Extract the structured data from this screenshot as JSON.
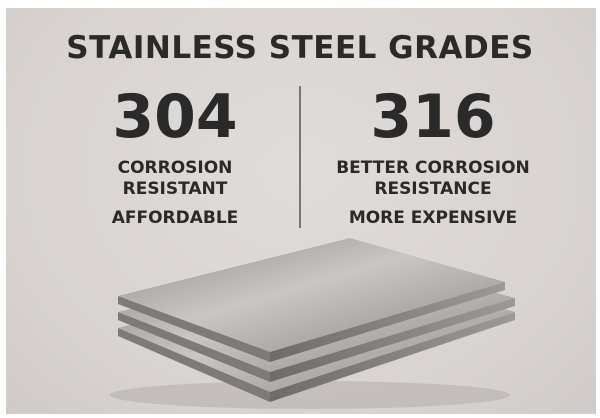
{
  "title": "STAINLESS STEEL GRADES",
  "grades": [
    {
      "number": "304",
      "description_line1": "CORROSION",
      "description_line2": "RESISTANT",
      "price": "AFFORDABLE"
    },
    {
      "number": "316",
      "description_line1": "BETTER CORROSION",
      "description_line2": "RESISTANCE",
      "price": "MORE EXPENSIVE"
    }
  ],
  "colors": {
    "background": "#dcd8d5",
    "text": "#2a2a2a",
    "steel": "#a9a6a4"
  }
}
